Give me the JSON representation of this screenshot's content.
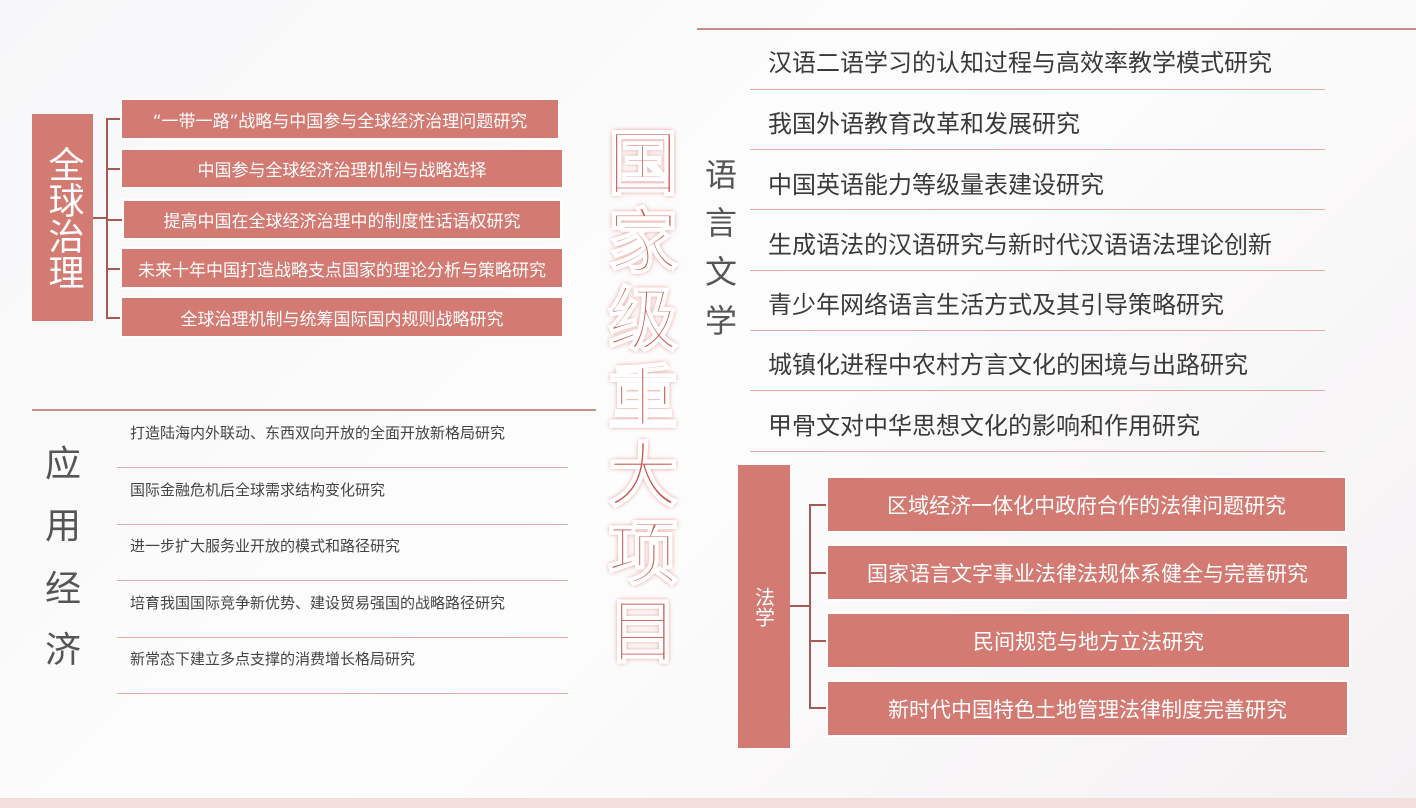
{
  "title": [
    "国",
    "家",
    "级",
    "重",
    "大",
    "项",
    "目"
  ],
  "global_governance": {
    "label": "全球治理",
    "items": [
      "“一带一路”战略与中国参与全球经济治理问题研究",
      "中国参与全球经济治理机制与战略选择",
      "提高中国在全球经济治理中的制度性话语权研究",
      "未来十年中国打造战略支点国家的理论分析与策略研究",
      "全球治理机制与统筹国际国内规则战略研究"
    ]
  },
  "applied_economics": {
    "label": [
      "应",
      "用",
      "经",
      "济"
    ],
    "items": [
      "打造陆海内外联动、东西双向开放的全面开放新格局研究",
      "国际金融危机后全球需求结构变化研究",
      "进一步扩大服务业开放的模式和路径研究",
      "培育我国国际竞争新优势、建设贸易强国的战略路径研究",
      "新常态下建立多点支撑的消费增长格局研究"
    ]
  },
  "linguistics": {
    "label": [
      "语",
      "言",
      "文",
      "学"
    ],
    "items": [
      "汉语二语学习的认知过程与高效率教学模式研究",
      "我国外语教育改革和发展研究",
      "中国英语能力等级量表建设研究",
      "生成语法的汉语研究与新时代汉语语法理论创新",
      "青少年网络语言生活方式及其引导策略研究",
      "城镇化进程中农村方言文化的困境与出路研究",
      "甲骨文对中华思想文化的影响和作用研究"
    ]
  },
  "law": {
    "label": "法学",
    "items": [
      "区域经济一体化中政府合作的法律问题研究",
      "国家语言文字事业法律法规体系健全与完善研究",
      "民间规范与地方立法研究",
      "新时代中国特色土地管理法律制度完善研究"
    ]
  },
  "colors": {
    "accent": "#d37a72",
    "title": "#c9524b",
    "line": "#e2aaa5"
  }
}
